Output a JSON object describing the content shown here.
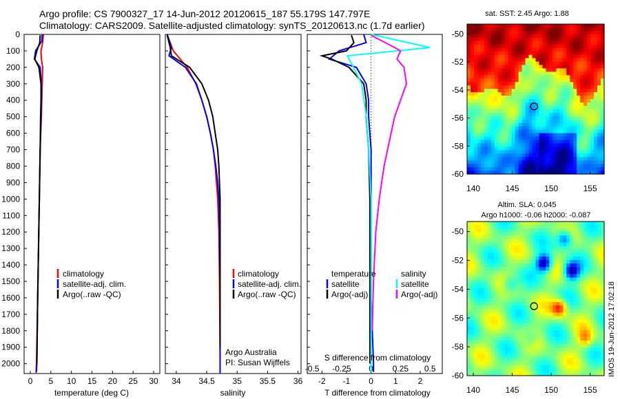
{
  "header": {
    "line1": "Argo profile: CS 7900327_17 14-Jun-2012 20120615_187 55.179S 147.797E",
    "line2": "Climatology: CARS2009. Satellite-adjusted climatology: synTS_20120613.nc (1.7d earlier)"
  },
  "depth_ticks": [
    "0",
    "100",
    "200",
    "300",
    "400",
    "500",
    "600",
    "700",
    "800",
    "900",
    "1000",
    "1100",
    "1200",
    "1300",
    "1400",
    "1500",
    "1600",
    "1700",
    "1800",
    "1900",
    "2000"
  ],
  "colors": {
    "climatology": "#ff0000",
    "satellite": "#0000ff",
    "argo": "#000000",
    "sal_satellite": "#00ffff",
    "sal_argo": "#ff00ff"
  },
  "chart_data": [
    {
      "type": "line",
      "panel": "temperature",
      "xlabel": "temperature (deg C)",
      "x_ticks": [
        "0",
        "5",
        "10",
        "15",
        "20",
        "25",
        "30"
      ],
      "xlim": [
        -1.5,
        31.5
      ],
      "ylim": [
        2060,
        0
      ],
      "legend": [
        "climatology",
        "satellite-adj. clim.",
        "Argo(..raw -QC)"
      ],
      "legend_position": "lower-center",
      "series": [
        {
          "name": "climatology",
          "color": "#ff0000",
          "depth": [
            0,
            50,
            100,
            150,
            200,
            300,
            400,
            500,
            700,
            1000,
            1300,
            1600,
            2000,
            2060
          ],
          "values": [
            3.2,
            3.0,
            2.6,
            2.7,
            3.0,
            2.9,
            2.8,
            2.7,
            2.4,
            2.2,
            2.0,
            1.8,
            1.5,
            1.4
          ]
        },
        {
          "name": "satellite-adj. clim.",
          "color": "#0000ff",
          "depth": [
            0,
            40,
            100,
            150,
            200,
            300,
            400,
            500,
            700,
            1000,
            1300,
            1600,
            2000,
            2050
          ],
          "values": [
            2.9,
            2.8,
            1.3,
            1.0,
            2.4,
            2.7,
            2.7,
            2.6,
            2.4,
            2.2,
            2.0,
            1.8,
            1.6,
            1.5
          ]
        },
        {
          "name": "Argo(..raw -QC)",
          "color": "#000000",
          "depth": [
            5,
            50,
            100,
            150,
            200,
            300,
            400,
            500,
            700,
            1000,
            1300,
            1600,
            2000
          ],
          "values": [
            2.4,
            2.3,
            1.6,
            1.1,
            2.1,
            2.6,
            2.6,
            2.5,
            2.4,
            2.2,
            2.0,
            1.8,
            1.6
          ]
        }
      ]
    },
    {
      "type": "line",
      "panel": "salinity",
      "xlabel": "salinity",
      "x_ticks": [
        "34",
        "34.5",
        "35",
        "35.5",
        "36"
      ],
      "xlim": [
        33.82,
        36.05
      ],
      "ylim": [
        2060,
        0
      ],
      "legend": [
        "climatology",
        "satellite-adj. clim.",
        "Argo(..raw -QC)"
      ],
      "legend_position": "lower-center",
      "annotation_lines": [
        "Argo Australia",
        "PI: Susan Wijffels"
      ],
      "series": [
        {
          "name": "climatology",
          "color": "#ff0000",
          "depth": [
            0,
            100,
            200,
            300,
            400,
            500,
            600,
            700,
            800,
            900,
            1000,
            1200,
            1500,
            2000,
            2060
          ],
          "values": [
            33.85,
            33.95,
            34.18,
            34.32,
            34.42,
            34.5,
            34.56,
            34.61,
            34.64,
            34.66,
            34.68,
            34.7,
            34.71,
            34.72,
            34.72
          ]
        },
        {
          "name": "satellite-adj. clim.",
          "color": "#0000ff",
          "depth": [
            0,
            80,
            130,
            200,
            300,
            400,
            500,
            600,
            700,
            800,
            900,
            1000,
            1200,
            1500,
            2000,
            2060
          ],
          "values": [
            33.85,
            33.92,
            33.88,
            34.15,
            34.33,
            34.42,
            34.5,
            34.56,
            34.61,
            34.65,
            34.68,
            34.7,
            34.71,
            34.72,
            34.72,
            34.72
          ]
        },
        {
          "name": "Argo(..raw -QC)",
          "color": "#000000",
          "depth": [
            5,
            80,
            130,
            200,
            300,
            400,
            500,
            600,
            700,
            800,
            900,
            1000,
            1200,
            1500,
            1900
          ],
          "values": [
            33.85,
            33.9,
            33.92,
            34.22,
            34.42,
            34.53,
            34.6,
            34.64,
            34.68,
            34.7,
            34.71,
            34.72,
            34.72,
            34.72,
            34.72
          ]
        }
      ]
    },
    {
      "type": "line",
      "panel": "difference",
      "xlabel_top": "S difference from climatology",
      "xlabel": "T difference from climatology",
      "x_ticks_t": [
        "-2",
        "-1",
        "0",
        "1",
        "2"
      ],
      "x_ticks_s": [
        "-0.5",
        "-0.25",
        "0",
        "0.25",
        "0.5"
      ],
      "xlim_t": [
        -2.6,
        2.9
      ],
      "ylim": [
        2060,
        0
      ],
      "legend_temperature": {
        "heading": "temperature",
        "items": [
          "satellite",
          "Argo(-adj)"
        ]
      },
      "legend_salinity": {
        "heading": "salinity",
        "items": [
          "satellite",
          "Argo(-adj)"
        ]
      },
      "series": [
        {
          "name": "temperature satellite",
          "color": "#0000ff",
          "depth": [
            0,
            50,
            100,
            150,
            200,
            300,
            400,
            500,
            700,
            1000,
            1300,
            1600,
            2000,
            2050
          ],
          "values": [
            -0.3,
            -0.2,
            -1.3,
            -1.7,
            -0.6,
            -0.2,
            -0.1,
            -0.1,
            0.0,
            0.0,
            0.0,
            0.0,
            0.1,
            0.1
          ]
        },
        {
          "name": "temperature Argo(-adj)",
          "color": "#000000",
          "depth": [
            5,
            50,
            100,
            130,
            150,
            200,
            300,
            400,
            500,
            700,
            1000,
            1300,
            1600,
            2000
          ],
          "values": [
            -0.8,
            -0.7,
            -1.0,
            -2.0,
            -1.6,
            -0.9,
            -0.3,
            -0.2,
            -0.2,
            -0.1,
            -0.05,
            -0.05,
            -0.05,
            -0.05
          ]
        },
        {
          "name": "salinity satellite",
          "color": "#00ffff",
          "depth": [
            0,
            80,
            130,
            200,
            300,
            400,
            500,
            700,
            1000,
            1300,
            1600,
            2000,
            2050
          ],
          "values": [
            0.0,
            0.5,
            -0.2,
            -0.15,
            -0.08,
            -0.06,
            -0.04,
            -0.02,
            0.0,
            0.0,
            0.0,
            0.0,
            0.0
          ]
        },
        {
          "name": "salinity Argo(-adj)",
          "color": "#ff00ff",
          "depth": [
            5,
            80,
            100,
            150,
            200,
            300,
            400,
            500,
            600,
            700,
            800,
            900,
            1000,
            1200,
            1500,
            1800
          ],
          "values": [
            0.0,
            0.2,
            0.25,
            0.22,
            0.28,
            0.3,
            0.25,
            0.2,
            0.17,
            0.14,
            0.11,
            0.09,
            0.07,
            0.04,
            0.02,
            0.01
          ]
        }
      ]
    },
    {
      "type": "heatmap",
      "panel": "sst_map",
      "title": "sat. SST: 2.45 Argo: 1.88",
      "x_ticks": [
        "140",
        "145",
        "150",
        "155"
      ],
      "y_ticks": [
        "-50",
        "-52",
        "-54",
        "-56",
        "-58",
        "-60"
      ],
      "xlim": [
        139.2,
        156.8
      ],
      "ylim": [
        -60,
        -49.3
      ],
      "argo_position": {
        "lon": 147.797,
        "lat": -55.179
      }
    },
    {
      "type": "heatmap",
      "panel": "sla_map",
      "title_lines": [
        "Altim. SLA: 0.045",
        "Argo h1000: -0.06 h2000: -0.087"
      ],
      "x_ticks": [
        "140",
        "145",
        "150",
        "155"
      ],
      "y_ticks": [
        "-50",
        "-52",
        "-54",
        "-56",
        "-58",
        "-60"
      ],
      "xlim": [
        139.2,
        156.8
      ],
      "ylim": [
        -60,
        -49.3
      ],
      "argo_position": {
        "lon": 147.797,
        "lat": -55.179
      }
    }
  ],
  "watermark": "IMOS 19-Jun-2012 17:02:18"
}
